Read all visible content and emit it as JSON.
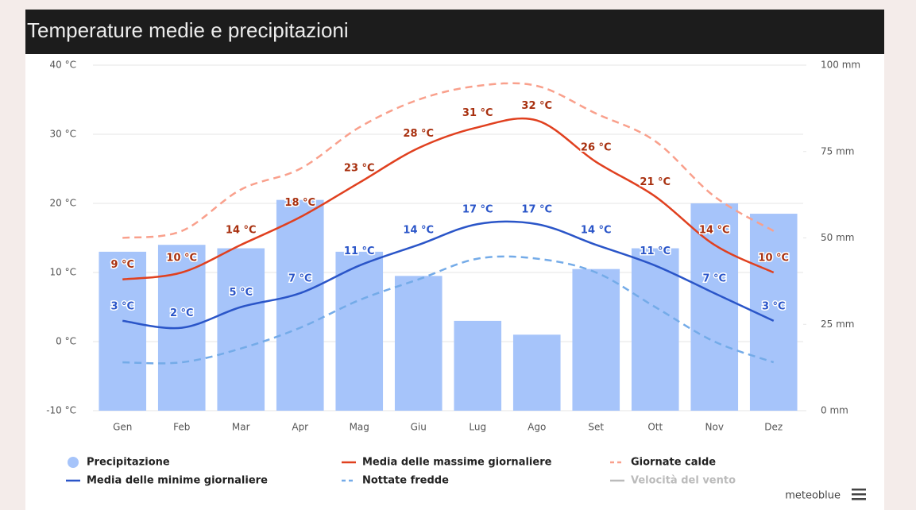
{
  "chart_data": {
    "type": "combo",
    "title": "Temperature medie e precipitazioni",
    "categories": [
      "Gen",
      "Feb",
      "Mar",
      "Apr",
      "Mag",
      "Giu",
      "Lug",
      "Ago",
      "Set",
      "Ott",
      "Nov",
      "Dez"
    ],
    "ylim": [
      -10,
      40
    ],
    "yticks": [
      {
        "value": -10,
        "label": "-10 °C"
      },
      {
        "value": 0,
        "label": "0 °C"
      },
      {
        "value": 10,
        "label": "10 °C"
      },
      {
        "value": 20,
        "label": "20 °C"
      },
      {
        "value": 30,
        "label": "30 °C"
      },
      {
        "value": 40,
        "label": "40 °C"
      }
    ],
    "y2lim": [
      0,
      100
    ],
    "y2ticks": [
      {
        "value": 0,
        "label": "0 mm"
      },
      {
        "value": 25,
        "label": "25 mm"
      },
      {
        "value": 50,
        "label": "50 mm"
      },
      {
        "value": 75,
        "label": "75 mm"
      },
      {
        "value": 100,
        "label": "100 mm"
      }
    ],
    "grid": true,
    "series": [
      {
        "name": "Precipitazione",
        "type": "bar",
        "axis": "y2",
        "color": "#a6c4fa",
        "values": [
          46,
          48,
          47,
          61,
          46,
          39,
          26,
          22,
          41,
          47,
          60,
          57
        ]
      },
      {
        "name": "Media delle massime giornaliere",
        "type": "line",
        "color": "#e0401f",
        "label_color": "#a8300f",
        "values": [
          9,
          10,
          14,
          18,
          23,
          28,
          31,
          32,
          26,
          21,
          14,
          10
        ],
        "value_labels": [
          "9 °C",
          "10 °C",
          "14 °C",
          "18 °C",
          "23 °C",
          "28 °C",
          "31 °C",
          "32 °C",
          "26 °C",
          "21 °C",
          "14 °C",
          "10 °C"
        ]
      },
      {
        "name": "Giornate calde",
        "type": "line",
        "dashed": true,
        "color": "#f9a08c",
        "values": [
          15,
          16,
          22,
          25,
          31,
          35,
          37,
          37,
          33,
          29,
          21,
          16
        ]
      },
      {
        "name": "Media delle minime giornaliere",
        "type": "line",
        "color": "#2a55c8",
        "label_color": "#2a55c8",
        "values": [
          3,
          2,
          5,
          7,
          11,
          14,
          17,
          17,
          14,
          11,
          7,
          3
        ],
        "value_labels": [
          "3 °C",
          "2 °C",
          "5 °C",
          "7 °C",
          "11 °C",
          "14 °C",
          "17 °C",
          "17 °C",
          "14 °C",
          "11 °C",
          "7 °C",
          "3 °C"
        ]
      },
      {
        "name": "Nottate fredde",
        "type": "line",
        "dashed": true,
        "color": "#74abe8",
        "values": [
          -3,
          -3,
          -1,
          2,
          6,
          9,
          12,
          12,
          10,
          5,
          0,
          -3
        ]
      }
    ],
    "legend_extra": [
      {
        "name": "Velocità del vento",
        "color": "#bbbbbb"
      }
    ],
    "source": "meteoblue"
  }
}
